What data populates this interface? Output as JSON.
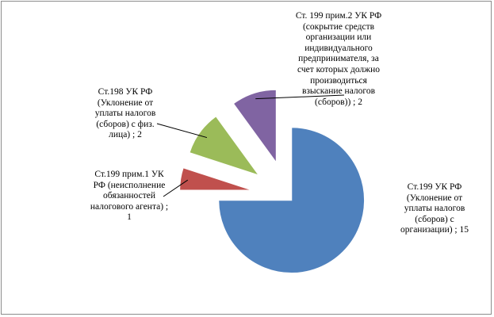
{
  "chart_data": {
    "type": "pie",
    "exploded": true,
    "slices": [
      {
        "label": "Ст.199 УК РФ\n(Уклонение от\nуплаты налогов\n(сборов) с\nорганизации) ; 15",
        "value": 15,
        "color": "#4f81bd"
      },
      {
        "label": "Ст.199 прим.1 УК\nРФ (неисполнение\nобязанностей\nналогового агента) ;\n1",
        "value": 1,
        "color": "#c0504d"
      },
      {
        "label": "Ст.198 УК РФ\n(Уклонение от\nуплаты налогов\n(сборов) с физ.\nлица) ; 2",
        "value": 2,
        "color": "#9bbb59"
      },
      {
        "label": "Ст. 199 прим.2 УК РФ\n(сокрытие средств\nорганизации или\nиндивидуального\nпредпринимателя, за\nсчет которых должно\nпроизводиться\nвзыскание налогов\n(сборов)) ; 2",
        "value": 2,
        "color": "#8064a2"
      }
    ]
  }
}
